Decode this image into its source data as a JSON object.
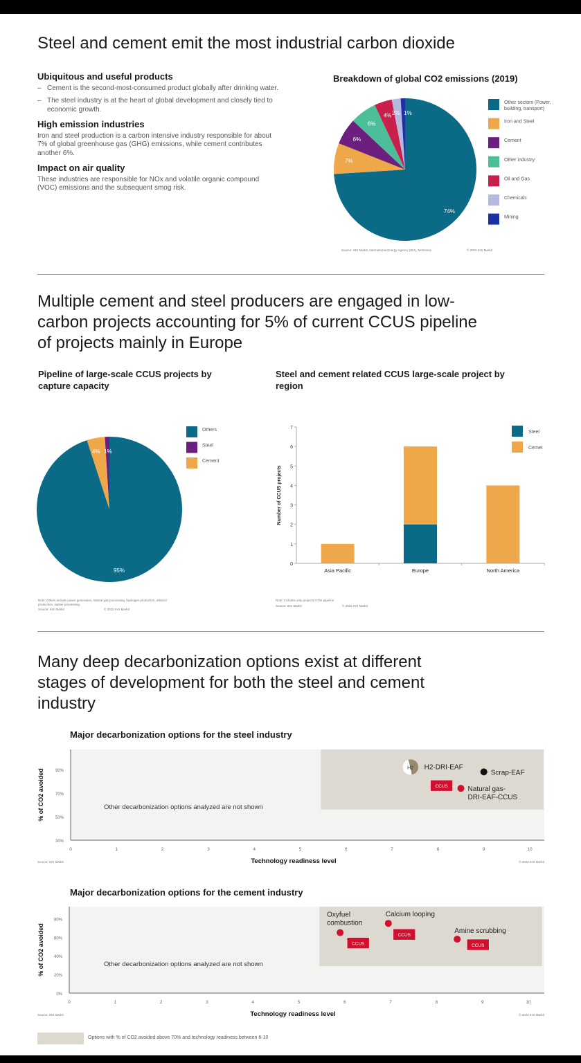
{
  "section1": {
    "title": "Steel and cement emit the most industrial carbon dioxide",
    "blocks": [
      {
        "heading": "Ubiquitous and useful products",
        "bullets": [
          "Cement is the second-most-consumed product globally after drinking water.",
          "The steel industry is at the heart of global development and closely tied to economic growth."
        ]
      },
      {
        "heading": "High emission industries",
        "text": "Iron and steel production is a carbon intensive industry responsible for about 7% of global greenhouse gas (GHG) emissions, while cement contributes another 6%."
      },
      {
        "heading": "Impact on air quality",
        "text": "These industries are responsible for NOx and volatile organic compound (VOC) emissions and the subsequent smog risk."
      }
    ]
  },
  "section2": {
    "title": "Multiple cement and steel producers are engaged in low-carbon projects accounting for 5% of current CCUS pipeline of projects mainly in Europe"
  },
  "section3": {
    "title": "Many deep decarbonization options exist at different stages of development for both the steel and cement industry",
    "legend_label": "Options with % of CO2 avoided above 70% and technology readiness between 6-10",
    "legend_color": "#ddd9d1"
  },
  "chart_data": [
    {
      "type": "pie",
      "title": "Breakdown of global CO2 emissions (2019)",
      "slices": [
        {
          "label": "Other sectors (Power, building, transport)",
          "value": 74,
          "display": "74%",
          "color": "#0b6a85"
        },
        {
          "label": "Iron and Steel",
          "value": 7,
          "display": "7%",
          "color": "#eea84a"
        },
        {
          "label": "Cement",
          "value": 6,
          "display": "6%",
          "color": "#6c1f7e"
        },
        {
          "label": "Other industry",
          "value": 6,
          "display": "6%",
          "color": "#4cbf9a"
        },
        {
          "label": "Oil and Gas",
          "value": 4,
          "display": "4%",
          "color": "#c8204a"
        },
        {
          "label": "Chemicals",
          "value": 2,
          "display": "2%",
          "color": "#b5b9e0"
        },
        {
          "label": "Mining",
          "value": 1,
          "display": "1%",
          "color": "#1c2fa5"
        }
      ],
      "legend_position": "right",
      "source": "Source: IHS Markit, International Energy Agency (IEA), McKinsey",
      "copyright": "© 2022 IHS Markit"
    },
    {
      "type": "pie",
      "title": "Pipeline of large-scale CCUS projects by capture capacity",
      "slices": [
        {
          "label": "Others",
          "value": 95,
          "display": "95%",
          "color": "#0b6a85"
        },
        {
          "label": "Cement",
          "value": 4,
          "display": "4%",
          "color": "#eea84a"
        },
        {
          "label": "Steel",
          "value": 1,
          "display": "1%",
          "color": "#6c1f7e"
        }
      ],
      "legend_order": [
        "Others",
        "Steel",
        "Cement"
      ],
      "legend_position": "right",
      "note": "Note: Others include power generation, natural gas processing, hydrogen production, ethanol production, waster processing.",
      "source": "Source: IHS Markit",
      "copyright": "© 2022 IHS Markit"
    },
    {
      "type": "bar",
      "stacked": true,
      "title": "Steel and cement related CCUS large-scale project by region",
      "categories": [
        "Asia Pacific",
        "Europe",
        "North America"
      ],
      "series": [
        {
          "name": "Steel",
          "values": [
            0,
            2,
            0
          ],
          "color": "#0b6a85"
        },
        {
          "name": "Cemet",
          "values": [
            1,
            4,
            4
          ],
          "color": "#eea84a"
        }
      ],
      "ylabel": "Number of CCUS projects",
      "ylim": [
        0,
        7
      ],
      "yticks": [
        0,
        1,
        2,
        3,
        4,
        5,
        6,
        7
      ],
      "legend_position": "top-right",
      "note": "Note: Includes only projects in the pipeline",
      "source": "Source: IHS Markit",
      "copyright": "© 2022 IHS Markit"
    },
    {
      "type": "scatter",
      "title": "Major decarbonization options for the steel industry",
      "xlabel": "Technology readiness level",
      "ylabel": "% of CO2 avoided",
      "xlim": [
        0,
        10.3
      ],
      "ylim": [
        30,
        107
      ],
      "xticks": [
        0,
        1,
        2,
        3,
        4,
        5,
        6,
        7,
        8,
        9,
        10
      ],
      "yticks": [
        {
          "v": 30,
          "label": "30%"
        },
        {
          "v": 50,
          "label": "50%"
        },
        {
          "v": 70,
          "label": "70%"
        },
        {
          "v": 90,
          "label": "90%"
        }
      ],
      "highlight": {
        "x": [
          5.45,
          10.3
        ],
        "y": [
          56,
          107
        ],
        "color": "#ddd9d1"
      },
      "plot_bg": "#f3f3f1",
      "annotation": "Other decarbonization options analyzed are not shown",
      "points": [
        {
          "label_lines": [
            "H2-DRI-EAF"
          ],
          "x": 7.4,
          "y": 92,
          "marker": "H2",
          "color": "#9c8a70"
        },
        {
          "label_lines": [
            "Scrap-EAF"
          ],
          "x": 9.0,
          "y": 88,
          "color": "#111111"
        },
        {
          "label_lines": [
            "Natural gas-",
            "DRI-EAF-CCUS"
          ],
          "x": 8.5,
          "y": 74,
          "color": "#d0102f",
          "tag": "CCUS"
        }
      ],
      "source": "Source: IHS Markit",
      "copyright": "© 2022 IHS Markit"
    },
    {
      "type": "scatter",
      "title": "Major decarbonization options for the cement industry",
      "xlabel": "Technology readiness level",
      "ylabel": "% of CO2 avoided",
      "xlim": [
        0,
        10.3
      ],
      "ylim": [
        0,
        93
      ],
      "xticks": [
        0,
        1,
        2,
        3,
        4,
        5,
        6,
        7,
        8,
        9,
        10
      ],
      "yticks": [
        {
          "v": 0,
          "label": "0%"
        },
        {
          "v": 20,
          "label": "20%"
        },
        {
          "v": 40,
          "label": "40%"
        },
        {
          "v": 60,
          "label": "60%"
        },
        {
          "v": 80,
          "label": "80%"
        }
      ],
      "highlight": {
        "x": [
          5.45,
          10.3
        ],
        "y": [
          29,
          93
        ],
        "color": "#ddd9d1"
      },
      "plot_bg": "#f3f3f1",
      "annotation": "Other decarbonization options analyzed are not shown",
      "points": [
        {
          "label_lines": [
            "Oxyfuel",
            "combustion"
          ],
          "x": 5.9,
          "y": 65,
          "color": "#d0102f",
          "tag": "CCUS"
        },
        {
          "label_lines": [
            "Calcium looping"
          ],
          "x": 6.95,
          "y": 75,
          "color": "#d0102f",
          "tag": "CCUS"
        },
        {
          "label_lines": [
            "Amine scrubbing"
          ],
          "x": 8.45,
          "y": 58,
          "color": "#d0102f",
          "tag": "CCUS"
        }
      ],
      "source": "Source: IHS Markit",
      "copyright": "© 2022 IHS Markit"
    }
  ]
}
